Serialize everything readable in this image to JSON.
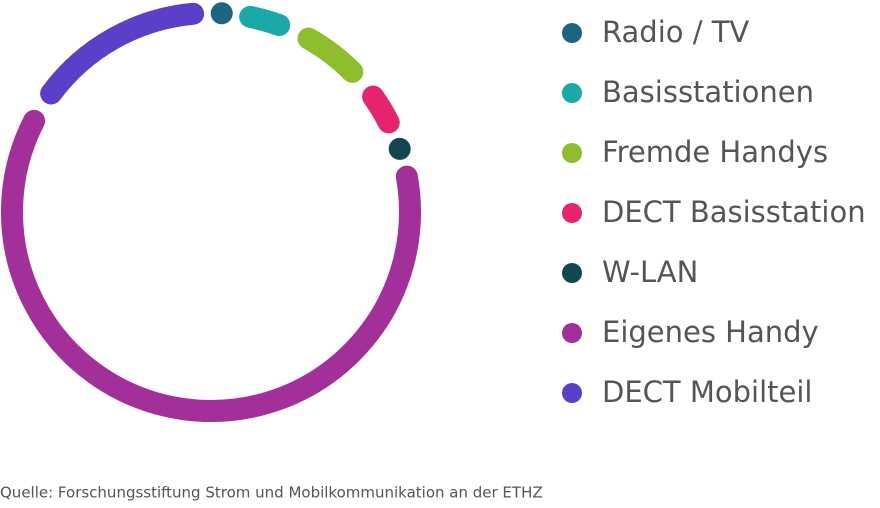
{
  "chart_data": {
    "type": "donut",
    "categories": [
      "Radio / TV",
      "Basisstationen",
      "Fremde Handys",
      "DECT Basisstation",
      "W-LAN",
      "Eigenes Handy",
      "DECT Mobilteil"
    ],
    "values": [
      2,
      5,
      7,
      5,
      2,
      63,
      16
    ],
    "colors": [
      "#1e6680",
      "#1aa9a9",
      "#8ebd2e",
      "#e5236e",
      "#124651",
      "#a3309a",
      "#5b3fc8"
    ],
    "source": "Quelle: Forschungsstiftung Strom und Mobilkommunikation an der ETHZ"
  }
}
